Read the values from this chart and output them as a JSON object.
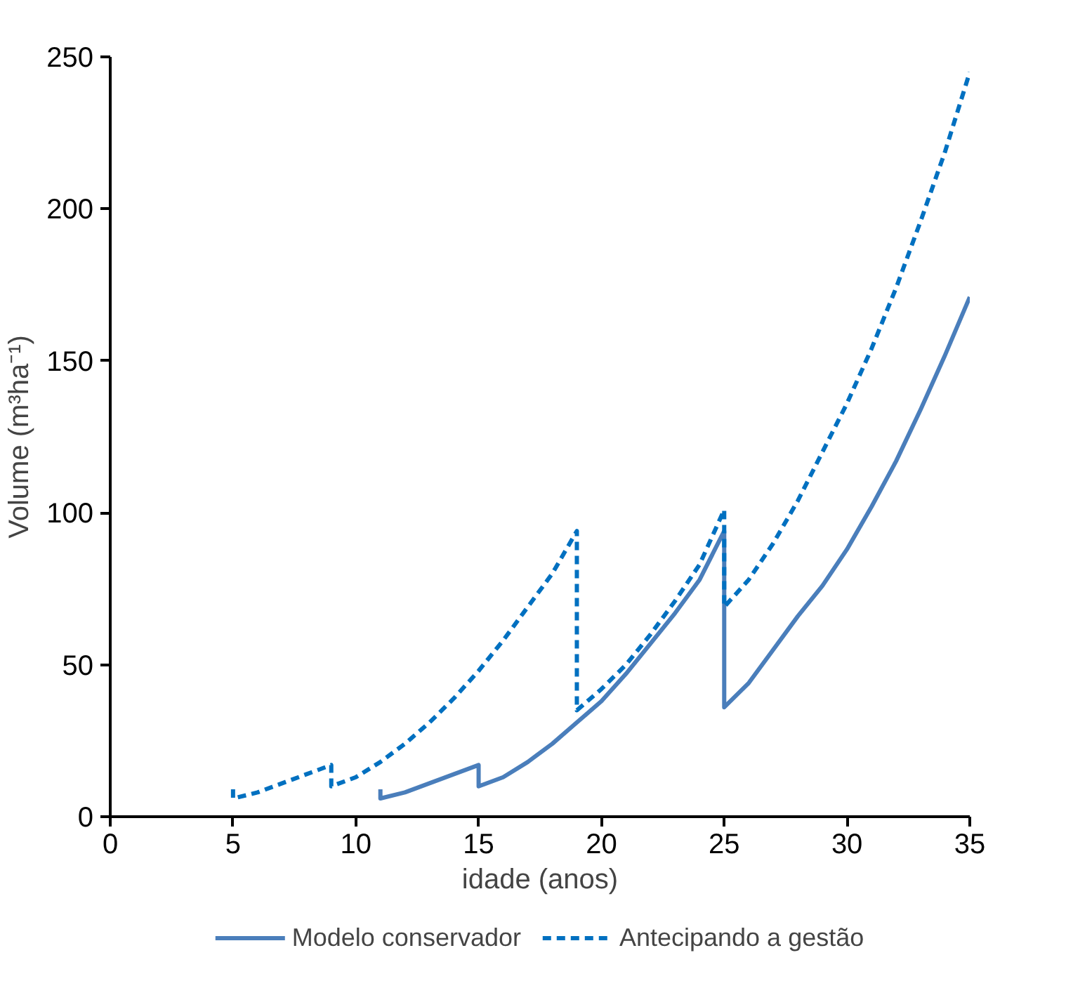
{
  "chart_data": {
    "type": "line",
    "xlabel": "idade (anos)",
    "ylabel": "Volume (m³ha⁻¹)",
    "xlim": [
      0,
      35
    ],
    "ylim": [
      0,
      250
    ],
    "xticks": [
      0,
      5,
      10,
      15,
      20,
      25,
      30,
      35
    ],
    "yticks": [
      0,
      50,
      100,
      150,
      200,
      250
    ],
    "grid": false,
    "legend": "bottom",
    "marker": "none",
    "series": [
      {
        "name": "Modelo conservador",
        "color": "#4a7ebb",
        "line_style": "solid",
        "x": [
          11,
          11,
          12,
          13,
          14,
          15,
          15,
          16,
          17,
          18,
          19,
          20,
          21,
          22,
          23,
          24,
          25,
          25,
          26,
          27,
          28,
          29,
          30,
          31,
          32,
          33,
          34,
          35
        ],
        "values": [
          9,
          6,
          8,
          11,
          14,
          17,
          10,
          13,
          18,
          24,
          31,
          38,
          47,
          57,
          67,
          78,
          94,
          36,
          44,
          55,
          66,
          76,
          88,
          102,
          117,
          134,
          152,
          171
        ]
      },
      {
        "name": "Antecipando a gestão",
        "color": "#0070c0",
        "line_style": "dashed",
        "x": [
          5,
          5,
          6,
          7,
          8,
          9,
          9,
          10,
          11,
          12,
          13,
          14,
          15,
          16,
          17,
          18,
          19,
          19,
          20,
          21,
          22,
          23,
          24,
          25,
          25,
          26,
          27,
          28,
          29,
          30,
          31,
          32,
          33,
          34,
          35
        ],
        "values": [
          9,
          6,
          8,
          11,
          14,
          17,
          10,
          13,
          18,
          24,
          31,
          39,
          48,
          58,
          69,
          80,
          94,
          35,
          42,
          50,
          60,
          71,
          83,
          101,
          69,
          78,
          90,
          104,
          120,
          136,
          154,
          174,
          196,
          219,
          245
        ]
      }
    ]
  }
}
